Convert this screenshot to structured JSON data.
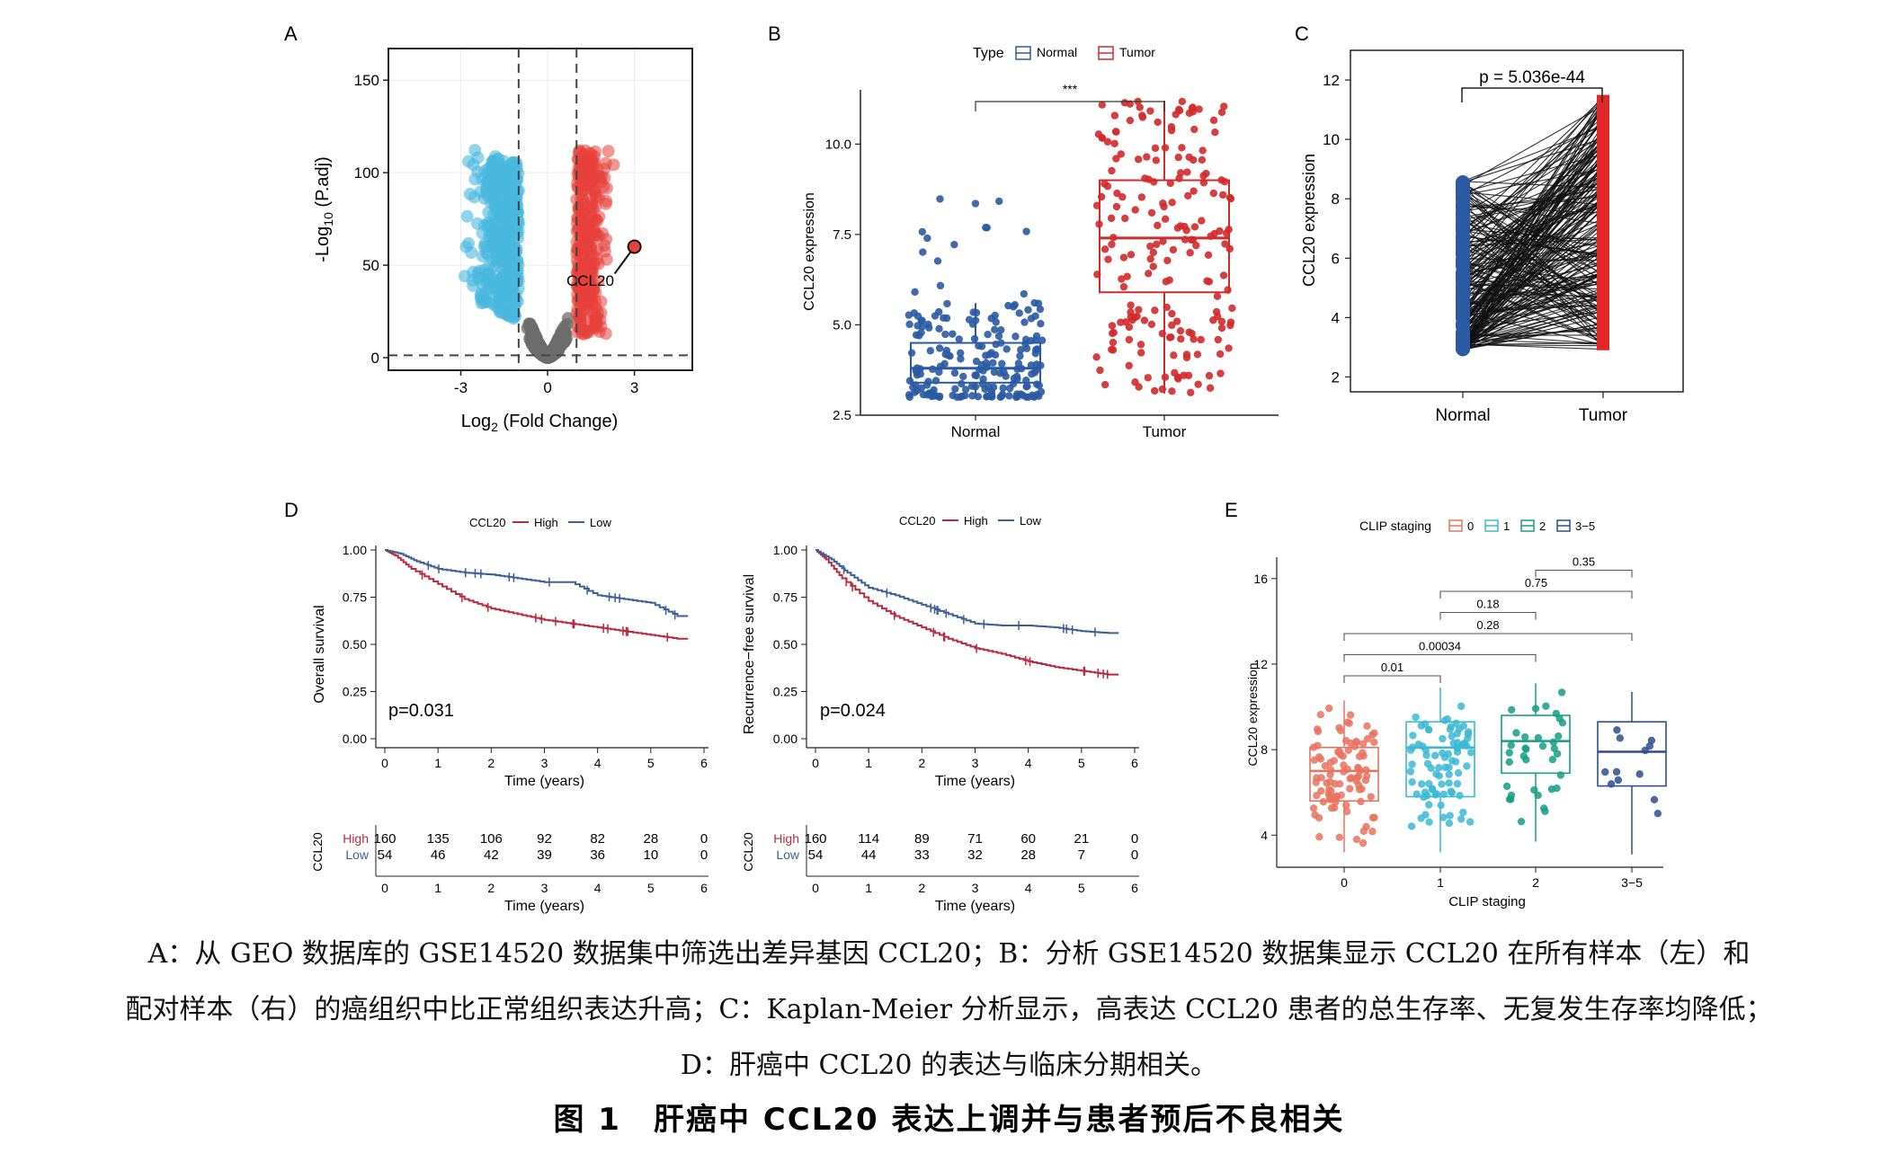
{
  "panels": {
    "A": {
      "label": "A",
      "xlabel_main": "Log",
      "xlabel_sub": "2",
      "xlabel_tail": " (Fold Change)",
      "ylabel_main": "-Log",
      "ylabel_sub": "10",
      "ylabel_tail": " (P.adj)",
      "gene_label": "CCL20",
      "xticks": [
        "-3",
        "0",
        "3"
      ],
      "yticks": [
        "0",
        "50",
        "100",
        "150"
      ]
    },
    "B": {
      "label": "B",
      "legend_title": "Type",
      "legend_items": [
        "Normal",
        "Tumor"
      ],
      "ylabel": "CCL20 expression",
      "yticks": [
        "2.5",
        "5.0",
        "7.5",
        "10.0"
      ],
      "categories": [
        "Normal",
        "Tumor"
      ],
      "sig": "***"
    },
    "C": {
      "label": "C",
      "pvalue": "p = 5.036e-44",
      "ylabel": "CCL20 expression",
      "yticks": [
        "2",
        "4",
        "6",
        "8",
        "10",
        "12"
      ],
      "categories": [
        "Normal",
        "Tumor"
      ]
    },
    "D": {
      "label": "D",
      "legend_title": "CCL20",
      "legend_items": [
        "High",
        "Low"
      ],
      "left": {
        "ylabel": "Overall survival",
        "pvalue": "p=0.031",
        "risk_high": [
          "160",
          "135",
          "106",
          "92",
          "82",
          "28",
          "0"
        ],
        "risk_low": [
          "54",
          "46",
          "42",
          "39",
          "36",
          "10",
          "0"
        ]
      },
      "right": {
        "ylabel": "Recurrence−free survival",
        "pvalue": "p=0.024",
        "risk_high": [
          "160",
          "114",
          "89",
          "71",
          "60",
          "21",
          "0"
        ],
        "risk_low": [
          "54",
          "44",
          "33",
          "32",
          "28",
          "7",
          "0"
        ]
      },
      "xlabel": "Time (years)",
      "xticks": [
        "0",
        "1",
        "2",
        "3",
        "4",
        "5",
        "6"
      ],
      "yticks": [
        "0.00",
        "0.25",
        "0.50",
        "0.75",
        "1.00"
      ],
      "risk_ylabel": "CCL20",
      "risk_rows": [
        "High",
        "Low"
      ]
    },
    "E": {
      "label": "E",
      "legend_title": "CLIP staging",
      "legend_items": [
        "0",
        "1",
        "2",
        "3−5"
      ],
      "ylabel": "CCL20 expression",
      "xlabel": "CLIP staging",
      "yticks": [
        "4",
        "8",
        "12",
        "16"
      ],
      "categories": [
        "0",
        "1",
        "2",
        "3−5"
      ],
      "comparisons": [
        {
          "a": 0,
          "b": 1,
          "p": "0.01"
        },
        {
          "a": 0,
          "b": 2,
          "p": "0.00034"
        },
        {
          "a": 0,
          "b": 3,
          "p": "0.28"
        },
        {
          "a": 1,
          "b": 2,
          "p": "0.18"
        },
        {
          "a": 1,
          "b": 3,
          "p": "0.75"
        },
        {
          "a": 2,
          "b": 3,
          "p": "0.35"
        }
      ]
    }
  },
  "chart_data": [
    {
      "type": "scatter",
      "panel": "A",
      "x_range": [
        -5.5,
        5
      ],
      "y_range": [
        0,
        160
      ],
      "thresholds": {
        "x": [
          -1,
          1
        ],
        "y": 1.3
      },
      "highlight": {
        "name": "CCL20",
        "x": 3.0,
        "y": 60
      }
    },
    {
      "type": "box",
      "panel": "B",
      "categories": [
        "Normal",
        "Tumor"
      ],
      "stats": [
        {
          "min": 3.0,
          "q1": 3.4,
          "median": 3.8,
          "q3": 4.5,
          "max": 5.6
        },
        {
          "min": 3.1,
          "q1": 5.9,
          "median": 7.4,
          "q3": 9.0,
          "max": 11.2
        }
      ],
      "ylim": [
        2.5,
        11.5
      ]
    },
    {
      "type": "line",
      "panel": "C",
      "categories": [
        "Normal",
        "Tumor"
      ],
      "normal_range": [
        2.9,
        8.6
      ],
      "tumor_range": [
        2.9,
        11.5
      ],
      "ylim": [
        1.5,
        13
      ]
    },
    {
      "type": "line",
      "panel": "D-left",
      "series": [
        {
          "name": "High",
          "x": [
            0,
            0.2,
            0.5,
            1,
            1.5,
            2,
            2.5,
            3,
            3.5,
            4,
            4.5,
            5,
            5.5
          ],
          "y": [
            1.0,
            0.97,
            0.9,
            0.82,
            0.74,
            0.69,
            0.66,
            0.63,
            0.61,
            0.59,
            0.57,
            0.55,
            0.53
          ]
        },
        {
          "name": "Low",
          "x": [
            0,
            0.3,
            0.6,
            1,
            1.5,
            2,
            2.5,
            3,
            3.5,
            4,
            4.5,
            5,
            5.5
          ],
          "y": [
            1.0,
            0.98,
            0.94,
            0.9,
            0.88,
            0.87,
            0.85,
            0.83,
            0.83,
            0.76,
            0.74,
            0.72,
            0.65
          ]
        }
      ],
      "xlim": [
        0,
        6
      ],
      "ylim": [
        0,
        1
      ]
    },
    {
      "type": "line",
      "panel": "D-right",
      "series": [
        {
          "name": "High",
          "x": [
            0,
            0.2,
            0.5,
            1,
            1.5,
            2,
            2.5,
            3,
            3.5,
            4,
            4.5,
            5,
            5.5
          ],
          "y": [
            1.0,
            0.95,
            0.85,
            0.73,
            0.65,
            0.59,
            0.53,
            0.48,
            0.45,
            0.41,
            0.38,
            0.36,
            0.34
          ]
        },
        {
          "name": "Low",
          "x": [
            0,
            0.3,
            0.6,
            1,
            1.5,
            2,
            2.5,
            3,
            3.5,
            4,
            4.5,
            5,
            5.5
          ],
          "y": [
            1.0,
            0.95,
            0.88,
            0.8,
            0.76,
            0.71,
            0.66,
            0.61,
            0.6,
            0.6,
            0.59,
            0.57,
            0.56
          ]
        }
      ],
      "xlim": [
        0,
        6
      ],
      "ylim": [
        0,
        1
      ]
    },
    {
      "type": "box",
      "panel": "E",
      "categories": [
        "0",
        "1",
        "2",
        "3−5"
      ],
      "stats": [
        {
          "min": 3.2,
          "q1": 5.6,
          "median": 7.0,
          "q3": 8.1,
          "max": 10.3
        },
        {
          "min": 3.2,
          "q1": 5.8,
          "median": 8.1,
          "q3": 9.3,
          "max": 10.9
        },
        {
          "min": 3.7,
          "q1": 6.9,
          "median": 8.4,
          "q3": 9.6,
          "max": 11.1
        },
        {
          "min": 3.1,
          "q1": 6.3,
          "median": 7.9,
          "q3": 9.3,
          "max": 10.7
        }
      ],
      "ylim": [
        2.5,
        17
      ]
    }
  ],
  "caption": {
    "line1": "A：从 GEO 数据库的 GSE14520 数据集中筛选出差异基因 CCL20；B：分析 GSE14520 数据集显示 CCL20 在所有样本（左）和",
    "line2": "配对样本（右）的癌组织中比正常组织表达升高；C：Kaplan-Meier 分析显示，高表达 CCL20 患者的总生存率、无复发生存率均降低；",
    "line3": "D：肝癌中 CCL20 的表达与临床分期相关。",
    "title": "图 1　肝癌中 CCL20 表达上调并与患者预后不良相关"
  },
  "colors": {
    "blue": "#2a5aa3",
    "red": "#d12a2a",
    "cyan": "#4ab8de",
    "grey": "#6c6c6c",
    "e0": "#e8735f",
    "e1": "#3bb8d3",
    "e2": "#159e86",
    "e3": "#2c4f8c",
    "lowline": "#3e5f97",
    "highline": "#b82b3f"
  }
}
